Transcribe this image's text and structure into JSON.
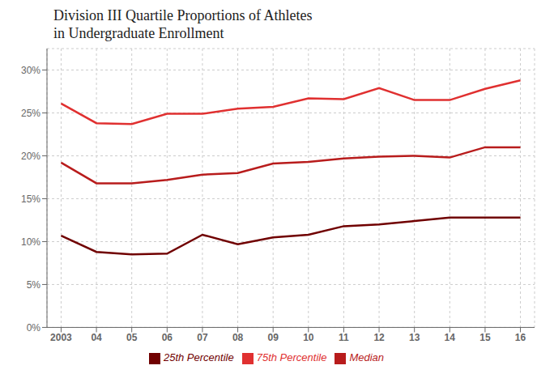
{
  "chart_data": {
    "type": "line",
    "title": "Division III Quartile Proportions of Athletes\nin Undergraduate Enrollment",
    "x": [
      2003,
      2004,
      2005,
      2006,
      2007,
      2008,
      2009,
      2010,
      2011,
      2012,
      2013,
      2014,
      2015,
      2016
    ],
    "xlim": [
      2002.6,
      2016.4
    ],
    "xticks": [
      2003,
      {
        "value": 2004,
        "label": "04"
      },
      {
        "value": 2005,
        "label": "05"
      },
      {
        "value": 2006,
        "label": "06"
      },
      {
        "value": 2007,
        "label": "07"
      },
      {
        "value": 2008,
        "label": "08"
      },
      {
        "value": 2009,
        "label": "09"
      },
      {
        "value": 2010,
        "label": "10"
      },
      {
        "value": 2011,
        "label": "11"
      },
      {
        "value": 2012,
        "label": "12"
      },
      {
        "value": 2013,
        "label": "13"
      },
      {
        "value": 2014,
        "label": "14"
      },
      {
        "value": 2015,
        "label": "15"
      },
      {
        "value": 2016,
        "label": "16"
      }
    ],
    "ylim": [
      0,
      0.325
    ],
    "yticks": [
      {
        "value": 0,
        "label": "0%"
      },
      {
        "value": 0.05,
        "label": "5%"
      },
      {
        "value": 0.1,
        "label": "10%"
      },
      {
        "value": 0.15,
        "label": "15%"
      },
      {
        "value": 0.2,
        "label": "20%"
      },
      {
        "value": 0.25,
        "label": "25%"
      },
      {
        "value": 0.3,
        "label": "30%"
      }
    ],
    "series": [
      {
        "name": "25th Percentile",
        "color": "#700000",
        "values": [
          0.107,
          0.088,
          0.085,
          0.086,
          0.108,
          0.097,
          0.105,
          0.108,
          0.118,
          0.12,
          0.124,
          0.128,
          0.128,
          0.128
        ]
      },
      {
        "name": "Median",
        "color": "#b81c1c",
        "values": [
          0.192,
          0.168,
          0.168,
          0.172,
          0.178,
          0.18,
          0.191,
          0.193,
          0.197,
          0.199,
          0.2,
          0.198,
          0.21,
          0.21
        ]
      },
      {
        "name": "75th Percentile",
        "color": "#e03030",
        "values": [
          0.261,
          0.238,
          0.237,
          0.249,
          0.249,
          0.255,
          0.257,
          0.267,
          0.266,
          0.279,
          0.265,
          0.265,
          0.278,
          0.288
        ]
      }
    ],
    "grid": true,
    "legend": "bottom"
  }
}
